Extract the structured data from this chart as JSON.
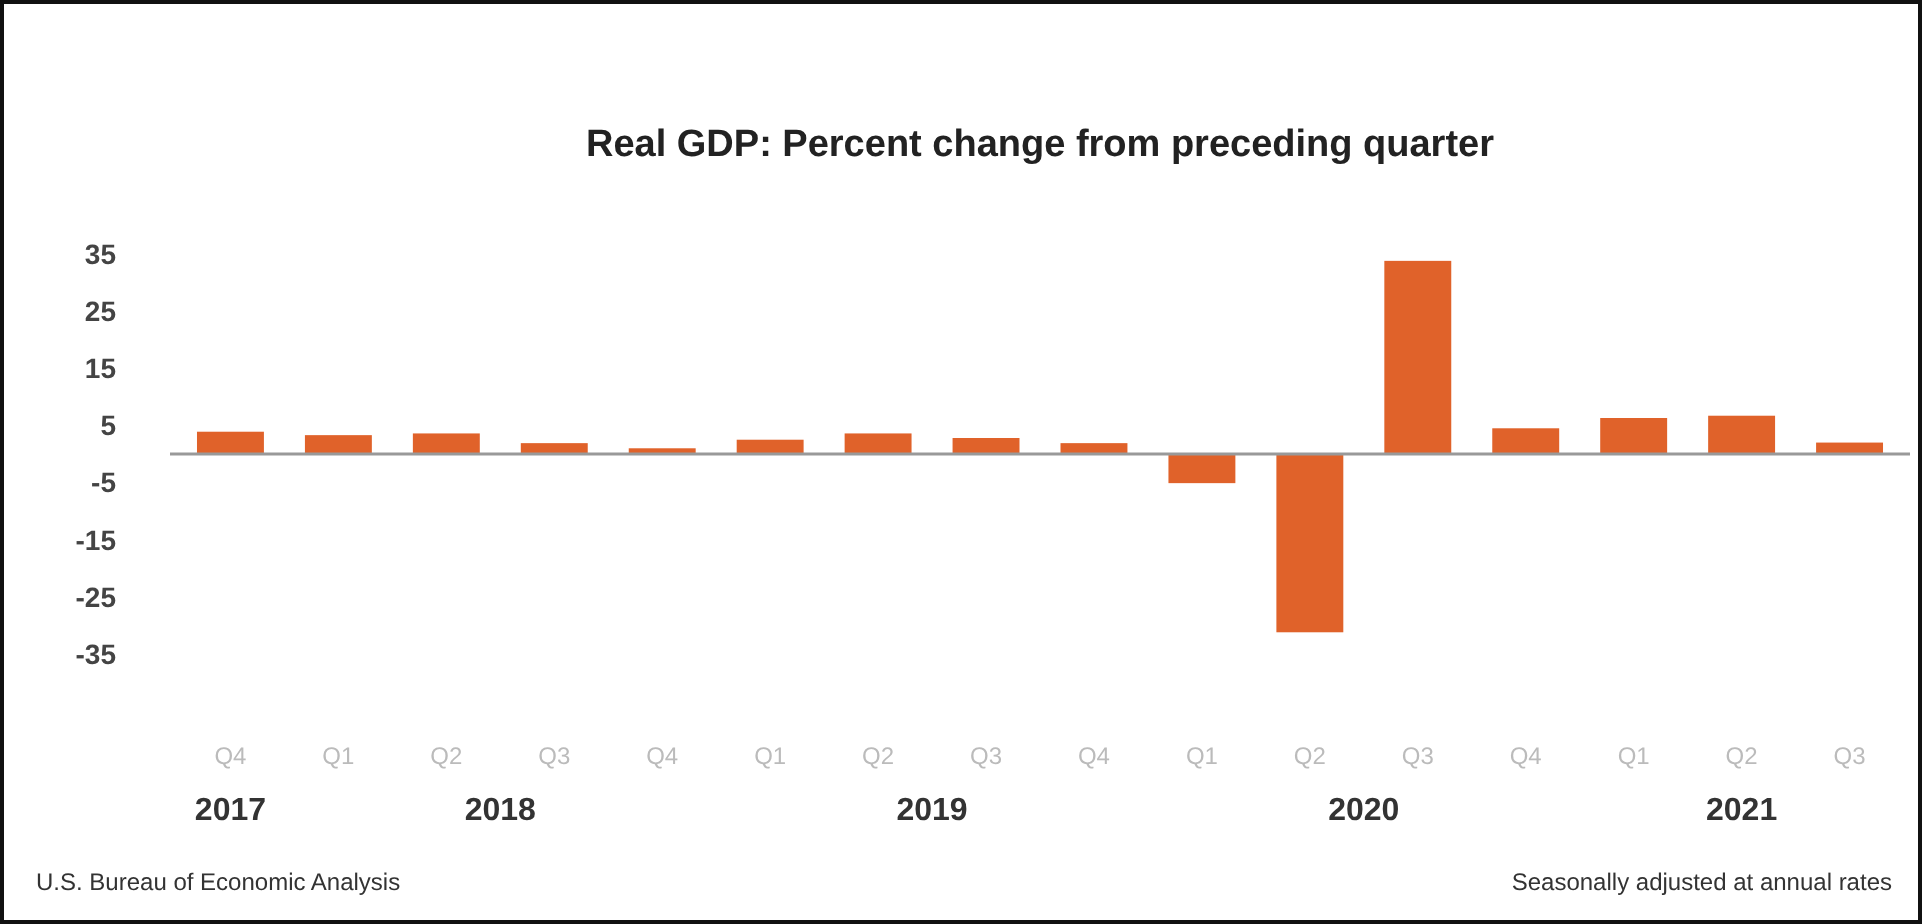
{
  "chart_data": {
    "type": "bar",
    "title": "Real GDP:  Percent change from preceding quarter",
    "categories": [
      "Q4",
      "Q1",
      "Q2",
      "Q3",
      "Q4",
      "Q1",
      "Q2",
      "Q3",
      "Q4",
      "Q1",
      "Q2",
      "Q3",
      "Q4",
      "Q1",
      "Q2",
      "Q3"
    ],
    "values": [
      3.9,
      3.3,
      3.6,
      1.9,
      1.0,
      2.5,
      3.6,
      2.8,
      1.9,
      -5.1,
      -31.2,
      33.8,
      4.5,
      6.3,
      6.7,
      2.0
    ],
    "color": "#e0622a",
    "ylim": [
      -35,
      35
    ],
    "yticks": [
      -35,
      -25,
      -15,
      -5,
      5,
      15,
      25,
      35
    ],
    "annotations": [
      "2017",
      "2018",
      "2019",
      "2020",
      "2021",
      "U.S. Bureau of Economic Analysis",
      "Seasonally adjusted at annual rates"
    ]
  }
}
